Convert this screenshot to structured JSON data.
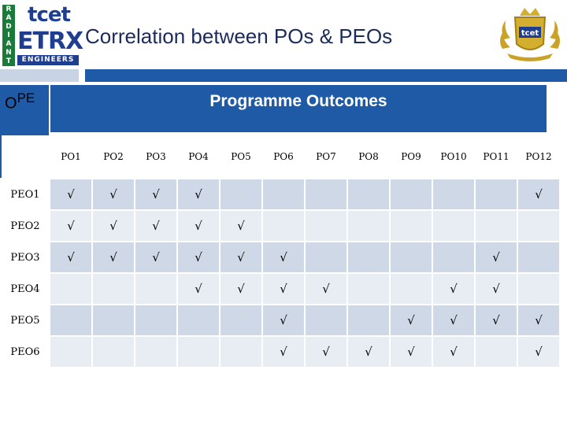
{
  "header": {
    "title": "Correlation between POs & PEOs",
    "logo_left": {
      "vertical": [
        "R",
        "A",
        "D",
        "I",
        "A",
        "N",
        "T"
      ],
      "top": "tcet",
      "main": "ETRX",
      "bottom": "ENGINEERS"
    },
    "logo_right": {
      "text": "tcet"
    }
  },
  "table": {
    "corner_label_main": "O",
    "corner_label_sup": "PE",
    "group_title": "Programme Outcomes",
    "columns": [
      "PO1",
      "PO2",
      "PO3",
      "PO4",
      "PO5",
      "PO6",
      "PO7",
      "PO8",
      "PO9",
      "PO10",
      "PO11",
      "PO12"
    ],
    "rows": [
      {
        "label": "PEO1",
        "cells": [
          "√",
          "√",
          "√",
          "√",
          "",
          "",
          "",
          "",
          "",
          "",
          "",
          "√"
        ]
      },
      {
        "label": "PEO2",
        "cells": [
          "√",
          "√",
          "√",
          "√",
          "√",
          "",
          "",
          "",
          "",
          "",
          "",
          ""
        ]
      },
      {
        "label": "PEO3",
        "cells": [
          "√",
          "√",
          "√",
          "√",
          "√",
          "√",
          "",
          "",
          "",
          "",
          "√",
          ""
        ]
      },
      {
        "label": "PEO4",
        "cells": [
          "",
          "",
          "",
          "√",
          "√",
          "√",
          "√",
          "",
          "",
          "√",
          "√",
          ""
        ]
      },
      {
        "label": "PEO5",
        "cells": [
          "",
          "",
          "",
          "",
          "",
          "√",
          "",
          "",
          "√",
          "√",
          "√",
          "√"
        ]
      },
      {
        "label": "PEO6",
        "cells": [
          "",
          "",
          "",
          "",
          "",
          "√",
          "√",
          "√",
          "√",
          "√",
          "",
          "√"
        ]
      }
    ]
  },
  "colors": {
    "accent": "#1f5aa6",
    "cell_dark": "#ced8e6",
    "cell_light": "#e8edf4",
    "title": "#1b2c5a"
  }
}
